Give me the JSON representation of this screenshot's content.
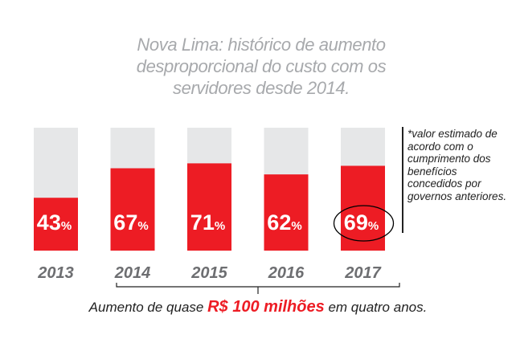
{
  "title": [
    "Nova Lima: histórico de aumento",
    "desproporcional do custo com os",
    "servidores desde 2014."
  ],
  "chart_data": {
    "type": "bar",
    "title": "Nova Lima: histórico de aumento desproporcional do custo com os servidores desde 2014.",
    "categories": [
      "2013",
      "2014",
      "2015",
      "2016",
      "2017"
    ],
    "values": [
      43,
      67,
      71,
      62,
      69
    ],
    "value_labels": [
      "43",
      "67",
      "71",
      "62",
      "69"
    ],
    "unit": "%",
    "ylim": [
      0,
      100
    ],
    "highlighted_category": "2017",
    "colors": {
      "bar_fill": "#ed1c24",
      "bar_track": "#e6e7e8",
      "value_text": "#ffffff",
      "year_text": "#6d6e71"
    }
  },
  "note": "*valor estimado de acordo com o cumprimento dos benefícios concedidos por governos anteriores.",
  "footer": {
    "prefix": "Aumento de quase",
    "highlight": "R$ 100 milhões",
    "suffix": "em quatro anos."
  }
}
